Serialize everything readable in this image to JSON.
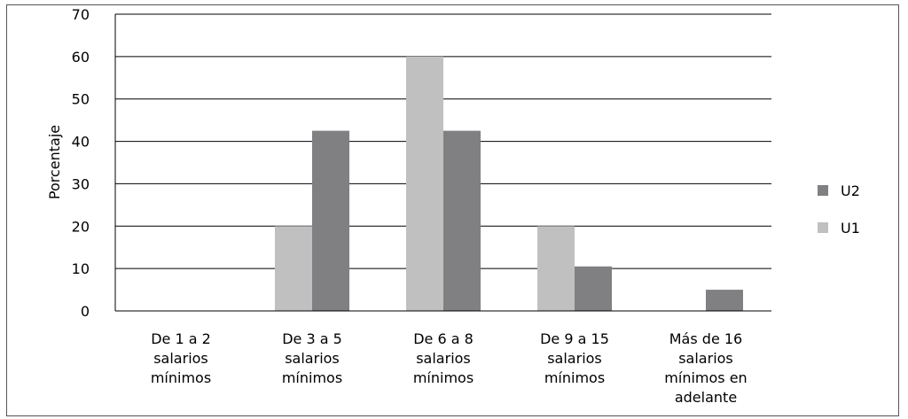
{
  "chart_data": {
    "type": "bar",
    "ylabel": "Porcentaje",
    "ylim": [
      0,
      70
    ],
    "yticks": [
      0,
      10,
      20,
      30,
      40,
      50,
      60,
      70
    ],
    "grid": true,
    "legend_position": "right",
    "categories": [
      [
        "De 1 a 2",
        "salarios",
        "mínimos"
      ],
      [
        "De 3 a 5",
        "salarios",
        "mínimos"
      ],
      [
        "De 6 a 8",
        "salarios",
        "mínimos"
      ],
      [
        "De 9 a 15",
        "salarios",
        "mínimos"
      ],
      [
        "Más de 16",
        "salarios",
        "mínimos en",
        "adelante"
      ]
    ],
    "series": [
      {
        "name": "U1",
        "color": "#c0c0c1",
        "values": [
          0,
          20,
          60,
          20,
          0
        ]
      },
      {
        "name": "U2",
        "color": "#808083",
        "values": [
          0,
          42.5,
          42.5,
          10.5,
          5
        ]
      }
    ],
    "legend_order": [
      "U2",
      "U1"
    ]
  }
}
